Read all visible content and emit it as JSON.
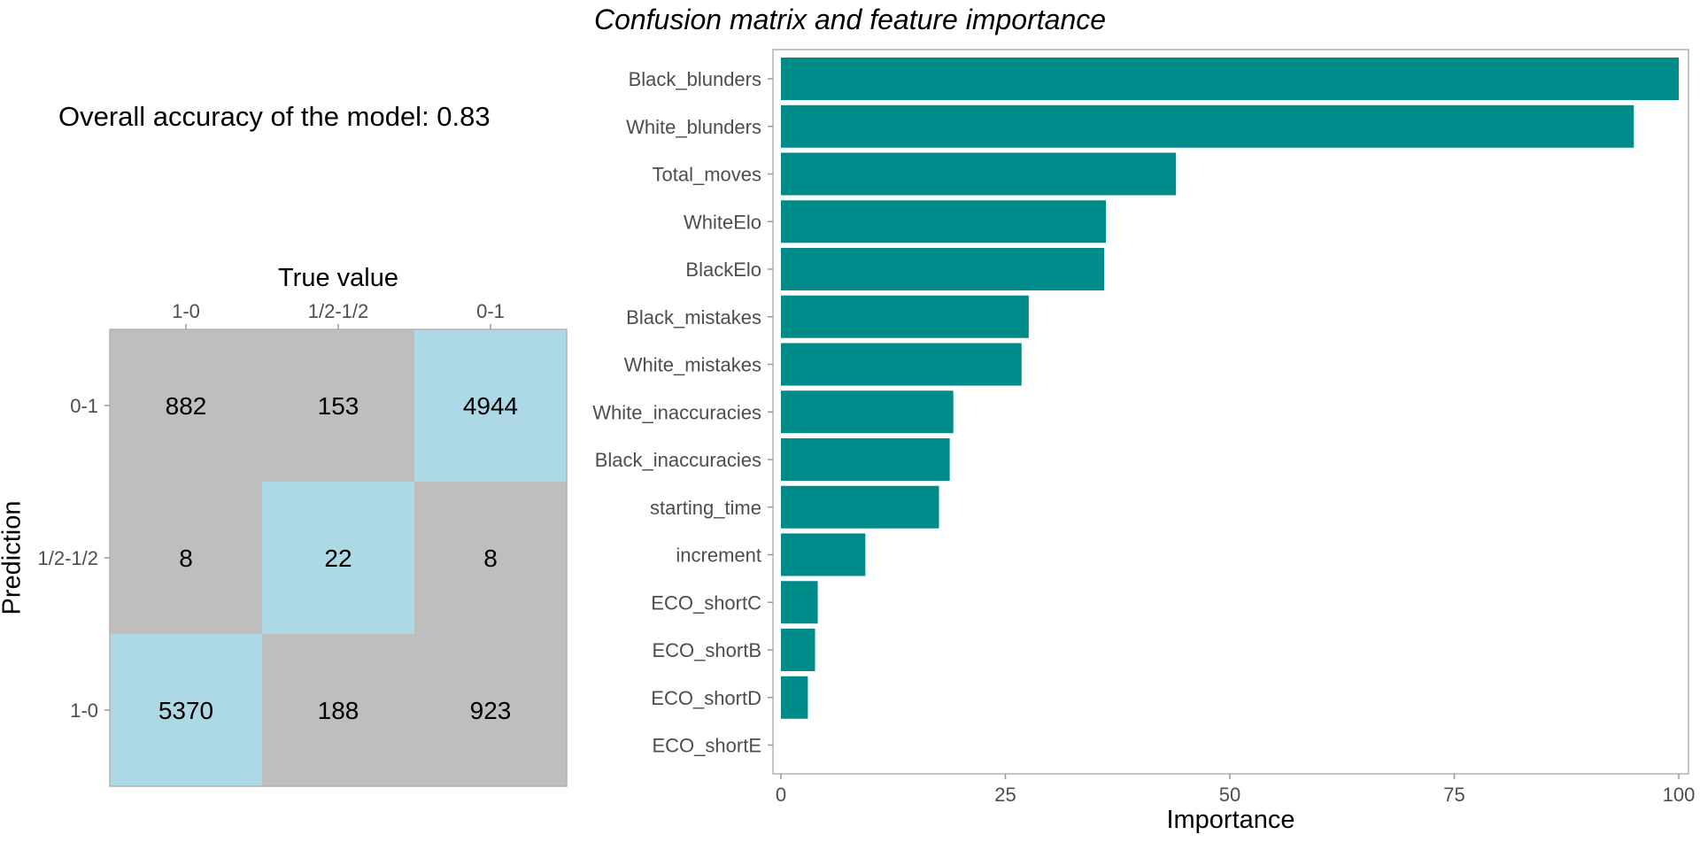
{
  "title": "Confusion matrix and feature importance",
  "accuracy_text": "Overall accuracy of the model: 0.83",
  "chart_data": [
    {
      "type": "heatmap",
      "title": "",
      "xlabel": "True value",
      "ylabel": "Prediction",
      "x_categories": [
        "1-0",
        "1/2-1/2",
        "0-1"
      ],
      "y_categories": [
        "0-1",
        "1/2-1/2",
        "1-0"
      ],
      "cells": [
        {
          "pred": "0-1",
          "true": "1-0",
          "value": 882,
          "correct": false
        },
        {
          "pred": "0-1",
          "true": "1/2-1/2",
          "value": 153,
          "correct": false
        },
        {
          "pred": "0-1",
          "true": "0-1",
          "value": 4944,
          "correct": true
        },
        {
          "pred": "1/2-1/2",
          "true": "1-0",
          "value": 8,
          "correct": false
        },
        {
          "pred": "1/2-1/2",
          "true": "1/2-1/2",
          "value": 22,
          "correct": true
        },
        {
          "pred": "1/2-1/2",
          "true": "0-1",
          "value": 8,
          "correct": false
        },
        {
          "pred": "1-0",
          "true": "1-0",
          "value": 5370,
          "correct": true
        },
        {
          "pred": "1-0",
          "true": "1/2-1/2",
          "value": 188,
          "correct": false
        },
        {
          "pred": "1-0",
          "true": "0-1",
          "value": 923,
          "correct": false
        }
      ],
      "colors": {
        "correct": "#add8e6",
        "incorrect": "#bebebe"
      }
    },
    {
      "type": "bar",
      "orientation": "horizontal",
      "title": "",
      "xlabel": "Importance",
      "ylabel": "",
      "xlim": [
        0,
        100
      ],
      "xticks": [
        0,
        25,
        50,
        75,
        100
      ],
      "categories": [
        "Black_blunders",
        "White_blunders",
        "Total_moves",
        "WhiteElo",
        "BlackElo",
        "Black_mistakes",
        "White_mistakes",
        "White_inaccuracies",
        "Black_inaccuracies",
        "starting_time",
        "increment",
        "ECO_shortC",
        "ECO_shortB",
        "ECO_shortD",
        "ECO_shortE"
      ],
      "values": [
        100,
        95,
        44,
        36.2,
        36,
        27.6,
        26.8,
        19.2,
        18.8,
        17.6,
        9.4,
        4.1,
        3.8,
        3.0,
        0
      ],
      "bar_color": "#008b8b"
    }
  ]
}
